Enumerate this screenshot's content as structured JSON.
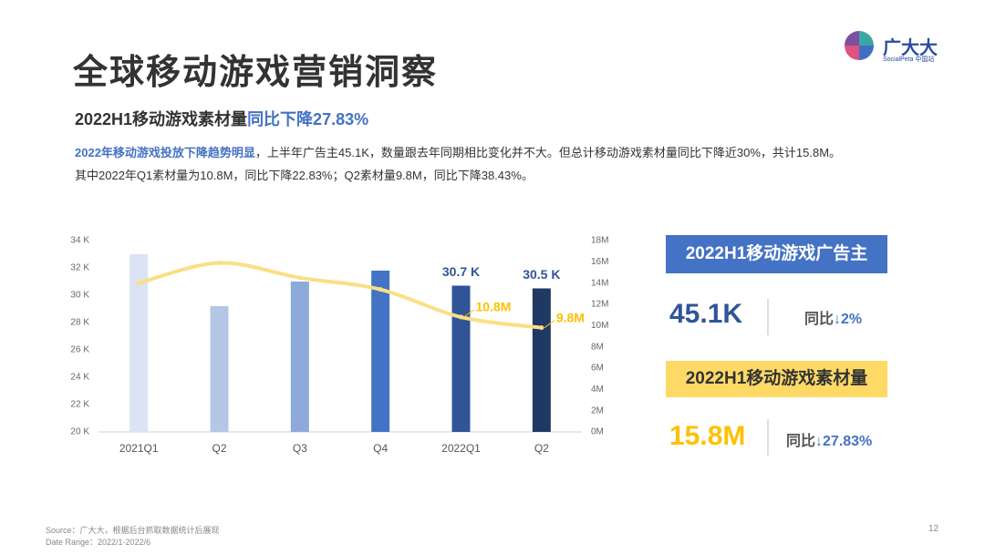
{
  "header": {
    "title": "全球移动游戏营销洞察",
    "subtitle": "2022H1移动游戏素材量",
    "subtitle_highlight": "同比下降27.83%",
    "brand": "广大大",
    "brand_sub": "SocialPeta 中国站"
  },
  "summary": {
    "line1_highlight": "2022年移动游戏投放下降趋势明显",
    "line1_rest": "，上半年广告主45.1K，数量跟去年同期相比变化并不大。但总计移动游戏素材量同比下降近30%，共计15.8M。",
    "line2": "其中2022年Q1素材量为10.8M，同比下降22.83%；Q2素材量9.8M，同比下降38.43%。"
  },
  "chart_data": {
    "type": "bar",
    "categories": [
      "2021Q1",
      "Q2",
      "Q3",
      "Q4",
      "2022Q1",
      "Q2"
    ],
    "series": [
      {
        "type": "bar",
        "colors": [
          "#dbe3f4",
          "#b4c7e7",
          "#8eaadb",
          "#4472c4",
          "#2f5597",
          "#1f3864"
        ],
        "values": [
          33.0,
          29.2,
          31.0,
          31.8,
          30.7,
          30.5
        ],
        "value_labels": [
          null,
          null,
          null,
          null,
          "30.7 K",
          "30.5 K"
        ],
        "label_color": "#2f5597"
      },
      {
        "type": "line",
        "axis": "y2",
        "color": "#fadf84",
        "label_color": "#ffc000",
        "smooth": true,
        "values": [
          14.0,
          15.9,
          14.5,
          13.4,
          10.8,
          9.8
        ],
        "value_labels": [
          null,
          null,
          null,
          null,
          "10.8M",
          "9.8M"
        ]
      }
    ],
    "ylim": [
      20,
      34
    ],
    "yticks": [
      {
        "value": 20,
        "label": "20 K"
      },
      {
        "value": 22,
        "label": "22 K"
      },
      {
        "value": 24,
        "label": "24 K"
      },
      {
        "value": 26,
        "label": "26 K"
      },
      {
        "value": 28,
        "label": "28 K"
      },
      {
        "value": 30,
        "label": "30 K"
      },
      {
        "value": 32,
        "label": "32 K"
      },
      {
        "value": 34,
        "label": "34 K"
      }
    ],
    "y2lim": [
      0,
      18
    ],
    "y2ticks": [
      {
        "value": 0,
        "label": "0M"
      },
      {
        "value": 2,
        "label": "2M"
      },
      {
        "value": 4,
        "label": "4M"
      },
      {
        "value": 6,
        "label": "6M"
      },
      {
        "value": 8,
        "label": "8M"
      },
      {
        "value": 10,
        "label": "10M"
      },
      {
        "value": 12,
        "label": "12M"
      },
      {
        "value": 14,
        "label": "14M"
      },
      {
        "value": 16,
        "label": "16M"
      },
      {
        "value": 18,
        "label": "18M"
      }
    ],
    "grid": false
  },
  "kpis": [
    {
      "label": "2022H1移动游戏广告主",
      "value": "45.1K",
      "change_label": "同比",
      "change": "↓2%"
    },
    {
      "label": "2022H1移动游戏素材量",
      "value": "15.8M",
      "change_label": "同比",
      "change": "↓27.83%"
    }
  ],
  "footer": {
    "source": "Source：广大大，根据后台抓取数据统计后展现",
    "date_range": "Date Range：2022/1-2022/6",
    "page": "12"
  }
}
